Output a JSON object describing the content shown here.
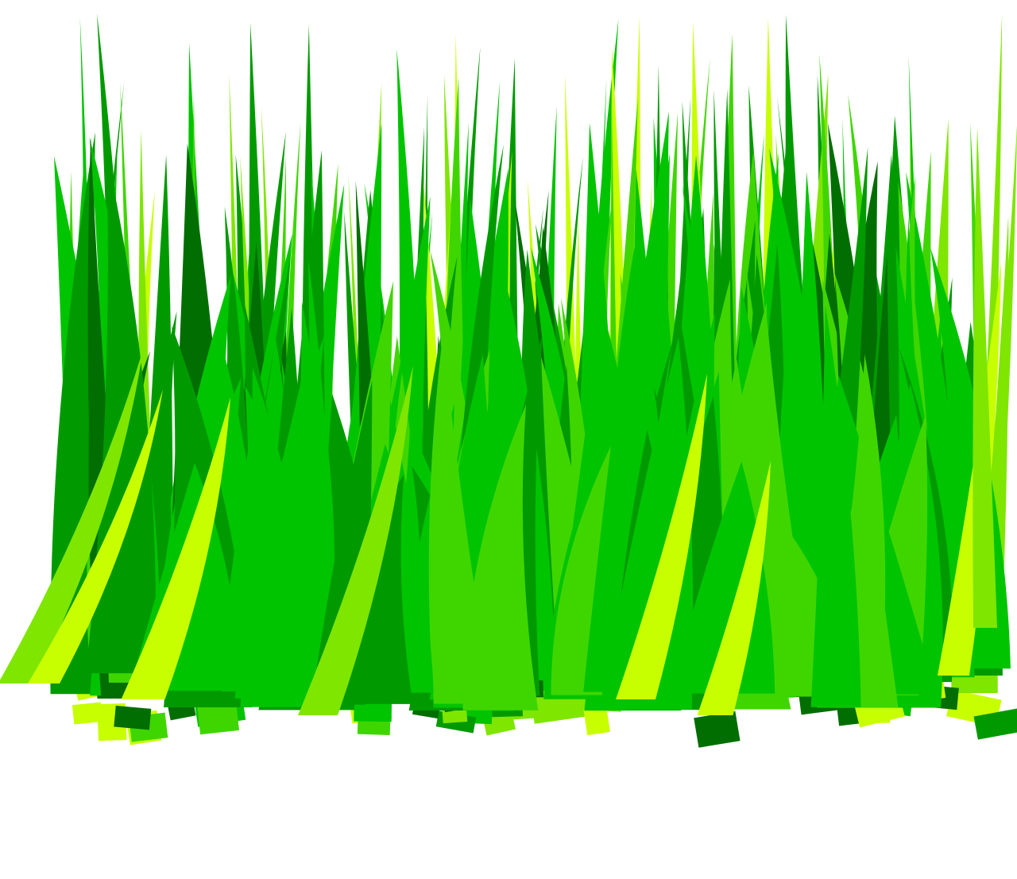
{
  "illustration": {
    "subject": "grass-tuft",
    "background": "#ffffff",
    "palette": {
      "dark_green": "#009a00",
      "mid_green": "#00c400",
      "bright_green": "#3fd600",
      "light_green": "#7fe600",
      "yellow_green": "#c8ff00",
      "deep_shadow": "#006e00"
    }
  }
}
